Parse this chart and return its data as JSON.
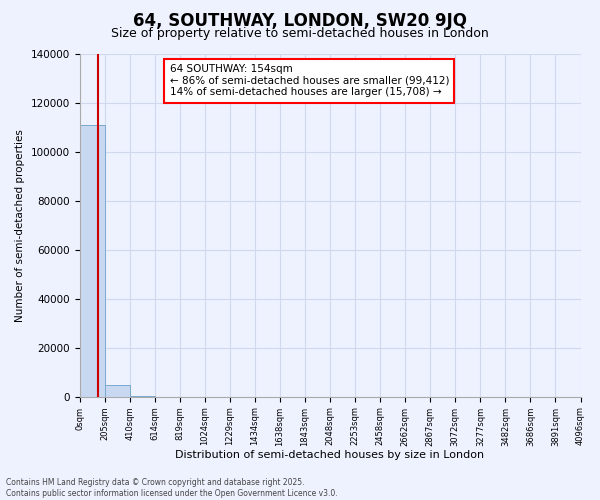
{
  "title": "64, SOUTHWAY, LONDON, SW20 9JQ",
  "subtitle": "Size of property relative to semi-detached houses in London",
  "xlabel": "Distribution of semi-detached houses by size in London",
  "ylabel": "Number of semi-detached properties",
  "annotation_title": "64 SOUTHWAY: 154sqm",
  "annotation_line1": "← 86% of semi-detached houses are smaller (99,412)",
  "annotation_line2": "14% of semi-detached houses are larger (15,708) →",
  "footer1": "Contains HM Land Registry data © Crown copyright and database right 2025.",
  "footer2": "Contains public sector information licensed under the Open Government Licence v3.0.",
  "bar_color": "#c8d8f0",
  "bar_edge_color": "#7aaad0",
  "redline_color": "#cc0000",
  "redline_value": 154,
  "ylim": [
    0,
    140000
  ],
  "yticks": [
    0,
    20000,
    40000,
    60000,
    80000,
    100000,
    120000,
    140000
  ],
  "bin_edges": [
    0,
    205,
    410,
    614,
    819,
    1024,
    1229,
    1434,
    1638,
    1843,
    2048,
    2253,
    2458,
    2662,
    2867,
    3072,
    3277,
    3482,
    3686,
    3891,
    4096
  ],
  "bin_labels": [
    "0sqm",
    "205sqm",
    "410sqm",
    "614sqm",
    "819sqm",
    "1024sqm",
    "1229sqm",
    "1434sqm",
    "1638sqm",
    "1843sqm",
    "2048sqm",
    "2253sqm",
    "2458sqm",
    "2662sqm",
    "2867sqm",
    "3072sqm",
    "3277sqm",
    "3482sqm",
    "3686sqm",
    "3891sqm",
    "4096sqm"
  ],
  "bar_heights": [
    111000,
    4800,
    250,
    60,
    20,
    10,
    6,
    3,
    2,
    1,
    1,
    1,
    1,
    0,
    0,
    0,
    0,
    0,
    0,
    0
  ],
  "background_color": "#eef2ff",
  "grid_color": "#d0d8ee",
  "title_fontsize": 12,
  "subtitle_fontsize": 9,
  "annotation_fontsize": 7.5
}
